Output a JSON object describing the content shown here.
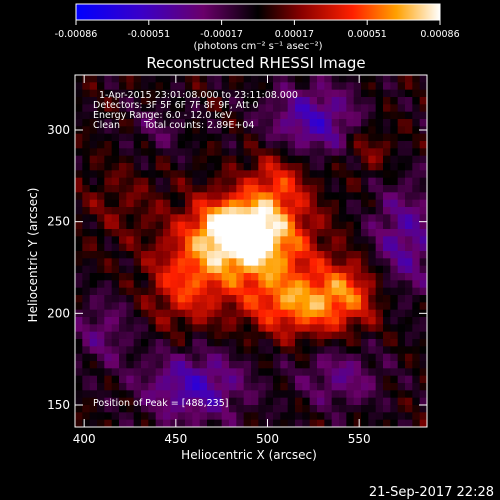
{
  "chart_data": {
    "type": "heatmap",
    "title": "Reconstructed RHESSI Image",
    "xlabel": "Heliocentric X (arcsec)",
    "ylabel": "Heliocentric Y (arcsec)",
    "xlim": [
      395,
      587
    ],
    "ylim": [
      138,
      330
    ],
    "xticks": [
      "400",
      "450",
      "500",
      "550"
    ],
    "yticks": [
      "150",
      "200",
      "250",
      "300"
    ],
    "colorbar": {
      "ticks": [
        "-0.00086",
        "-0.00051",
        "-0.00017",
        "0.00017",
        "0.00051",
        "0.00086"
      ],
      "unit_label": "(photons cm⁻² s⁻¹ asec⁻²)",
      "range": [
        -0.00086,
        0.00086
      ]
    },
    "annotations": {
      "time_range": "1-Apr-2015 23:01:08.000 to 23:11:08.000",
      "detectors": "Detectors: 3F 5F 6F 7F 8F 9F, Att 0",
      "energy": "Energy Range: 6.0 - 12.0 keV",
      "clean": "Clean",
      "counts": "Total counts: 2.89E+04",
      "peak": "Position of Peak = [488,235]"
    },
    "peak": [
      488,
      235
    ],
    "sources": [
      {
        "x": 490,
        "y": 238,
        "amp": 1.0,
        "sx": 22,
        "sy": 16
      },
      {
        "x": 480,
        "y": 248,
        "amp": 0.55,
        "sx": 14,
        "sy": 10
      },
      {
        "x": 505,
        "y": 270,
        "amp": 0.45,
        "sx": 12,
        "sy": 14
      },
      {
        "x": 520,
        "y": 205,
        "amp": 0.7,
        "sx": 22,
        "sy": 12
      },
      {
        "x": 455,
        "y": 215,
        "amp": 0.45,
        "sx": 14,
        "sy": 16
      },
      {
        "x": 545,
        "y": 215,
        "amp": 0.35,
        "sx": 12,
        "sy": 12
      },
      {
        "x": 420,
        "y": 260,
        "amp": 0.15,
        "sx": 16,
        "sy": 16
      },
      {
        "x": 555,
        "y": 290,
        "amp": 0.25,
        "sx": 10,
        "sy": 10
      }
    ],
    "negative_regions": [
      {
        "x": 525,
        "y": 305,
        "amp": -0.55,
        "sx": 18,
        "sy": 14
      },
      {
        "x": 460,
        "y": 160,
        "amp": -0.55,
        "sx": 20,
        "sy": 14
      },
      {
        "x": 575,
        "y": 240,
        "amp": -0.45,
        "sx": 14,
        "sy": 22
      },
      {
        "x": 540,
        "y": 165,
        "amp": -0.35,
        "sx": 16,
        "sy": 12
      },
      {
        "x": 410,
        "y": 190,
        "amp": -0.3,
        "sx": 12,
        "sy": 14
      },
      {
        "x": 440,
        "y": 300,
        "amp": -0.2,
        "sx": 12,
        "sy": 10
      }
    ]
  },
  "footer_date": "21-Sep-2017 22:28"
}
